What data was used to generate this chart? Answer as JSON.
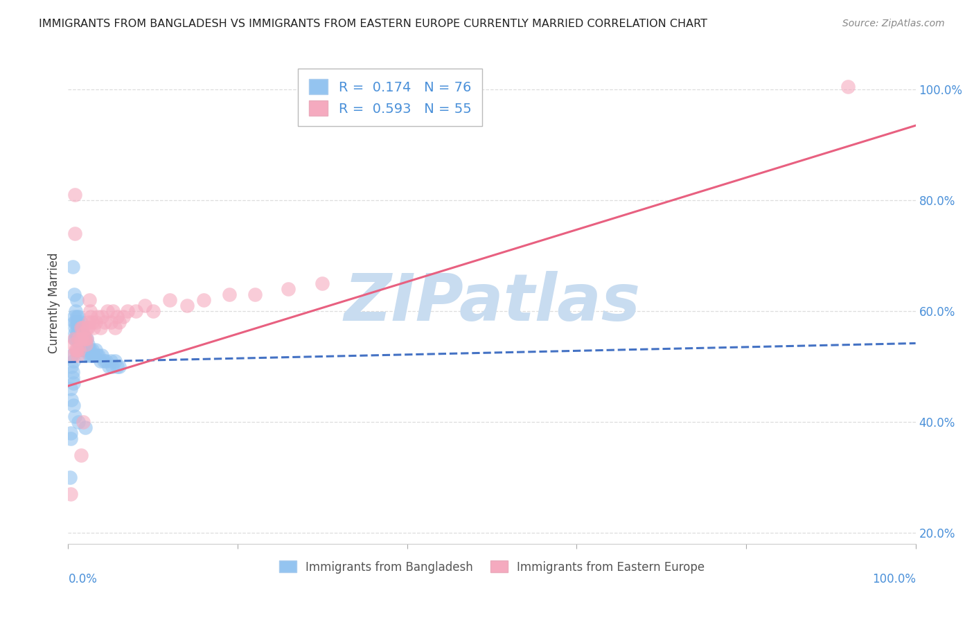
{
  "title": "IMMIGRANTS FROM BANGLADESH VS IMMIGRANTS FROM EASTERN EUROPE CURRENTLY MARRIED CORRELATION CHART",
  "source": "Source: ZipAtlas.com",
  "ylabel": "Currently Married",
  "blue_R": 0.174,
  "blue_N": 76,
  "pink_R": 0.593,
  "pink_N": 55,
  "blue_color": "#94C4F0",
  "pink_color": "#F5AABF",
  "blue_line_color": "#4472C4",
  "pink_line_color": "#E86080",
  "watermark_text": "ZIPatlas",
  "watermark_color": "#C8DCF0",
  "legend_label_blue": "Immigrants from Bangladesh",
  "legend_label_pink": "Immigrants from Eastern Europe",
  "xlim": [
    0.0,
    1.0
  ],
  "ylim": [
    0.18,
    1.05
  ],
  "y_ticks": [
    0.2,
    0.4,
    0.6,
    0.8,
    1.0
  ],
  "y_tick_labels": [
    "20.0%",
    "40.0%",
    "60.0%",
    "80.0%",
    "100.0%"
  ],
  "x_ticks": [
    0.0,
    0.2,
    0.4,
    0.6,
    0.8,
    1.0
  ],
  "background_color": "#FFFFFF",
  "grid_color": "#DDDDDD",
  "blue_scatter_x": [
    0.002,
    0.003,
    0.003,
    0.004,
    0.004,
    0.005,
    0.005,
    0.005,
    0.006,
    0.006,
    0.007,
    0.007,
    0.007,
    0.008,
    0.008,
    0.008,
    0.009,
    0.009,
    0.009,
    0.01,
    0.01,
    0.01,
    0.011,
    0.011,
    0.011,
    0.012,
    0.012,
    0.013,
    0.013,
    0.013,
    0.014,
    0.014,
    0.015,
    0.015,
    0.015,
    0.016,
    0.016,
    0.017,
    0.017,
    0.018,
    0.018,
    0.019,
    0.019,
    0.02,
    0.02,
    0.021,
    0.021,
    0.022,
    0.022,
    0.023,
    0.024,
    0.025,
    0.026,
    0.027,
    0.028,
    0.029,
    0.03,
    0.032,
    0.034,
    0.036,
    0.038,
    0.04,
    0.042,
    0.045,
    0.048,
    0.05,
    0.052,
    0.055,
    0.058,
    0.06,
    0.003,
    0.004,
    0.006,
    0.008,
    0.012,
    0.02
  ],
  "blue_scatter_y": [
    0.3,
    0.38,
    0.37,
    0.52,
    0.5,
    0.68,
    0.49,
    0.48,
    0.51,
    0.47,
    0.63,
    0.59,
    0.58,
    0.57,
    0.56,
    0.55,
    0.6,
    0.58,
    0.55,
    0.62,
    0.59,
    0.56,
    0.58,
    0.57,
    0.55,
    0.59,
    0.56,
    0.57,
    0.55,
    0.54,
    0.56,
    0.54,
    0.58,
    0.56,
    0.54,
    0.57,
    0.55,
    0.56,
    0.54,
    0.55,
    0.53,
    0.55,
    0.53,
    0.55,
    0.53,
    0.54,
    0.52,
    0.55,
    0.53,
    0.54,
    0.53,
    0.52,
    0.53,
    0.52,
    0.53,
    0.52,
    0.52,
    0.53,
    0.52,
    0.52,
    0.51,
    0.52,
    0.51,
    0.51,
    0.5,
    0.51,
    0.5,
    0.51,
    0.5,
    0.5,
    0.46,
    0.44,
    0.43,
    0.41,
    0.4,
    0.39
  ],
  "pink_scatter_x": [
    0.003,
    0.005,
    0.006,
    0.007,
    0.008,
    0.009,
    0.01,
    0.011,
    0.012,
    0.013,
    0.014,
    0.015,
    0.016,
    0.017,
    0.018,
    0.019,
    0.02,
    0.021,
    0.022,
    0.023,
    0.024,
    0.025,
    0.026,
    0.027,
    0.028,
    0.03,
    0.032,
    0.035,
    0.038,
    0.04,
    0.043,
    0.046,
    0.05,
    0.053,
    0.055,
    0.058,
    0.06,
    0.065,
    0.07,
    0.08,
    0.09,
    0.1,
    0.12,
    0.14,
    0.16,
    0.19,
    0.22,
    0.26,
    0.3,
    0.92,
    0.008,
    0.01,
    0.015,
    0.018,
    0.022
  ],
  "pink_scatter_y": [
    0.27,
    0.52,
    0.54,
    0.55,
    0.81,
    0.53,
    0.53,
    0.52,
    0.55,
    0.53,
    0.55,
    0.57,
    0.55,
    0.57,
    0.56,
    0.55,
    0.55,
    0.54,
    0.57,
    0.57,
    0.58,
    0.62,
    0.6,
    0.59,
    0.58,
    0.57,
    0.58,
    0.59,
    0.57,
    0.59,
    0.58,
    0.6,
    0.58,
    0.6,
    0.57,
    0.59,
    0.58,
    0.59,
    0.6,
    0.6,
    0.61,
    0.6,
    0.62,
    0.61,
    0.62,
    0.63,
    0.63,
    0.64,
    0.65,
    1.005,
    0.74,
    0.53,
    0.34,
    0.4,
    0.55
  ],
  "blue_trend_y_start": 0.508,
  "blue_trend_y_end": 0.542,
  "pink_trend_y_start": 0.465,
  "pink_trend_y_end": 0.935
}
